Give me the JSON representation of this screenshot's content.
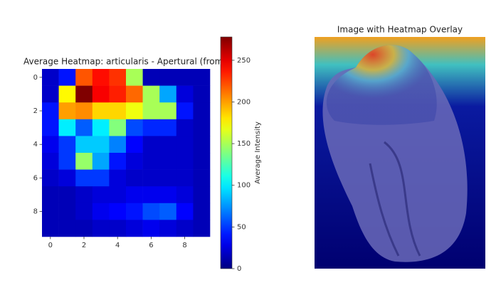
{
  "chart_data": [
    {
      "type": "heatmap",
      "title": "Average Heatmap: articularis - Apertural (from",
      "colormap": "jet",
      "values": [
        [
          20,
          40,
          220,
          240,
          230,
          150,
          15,
          15,
          15,
          15
        ],
        [
          20,
          175,
          278,
          245,
          235,
          215,
          150,
          80,
          25,
          15
        ],
        [
          40,
          200,
          205,
          185,
          185,
          170,
          150,
          150,
          40,
          15
        ],
        [
          40,
          100,
          60,
          100,
          140,
          55,
          45,
          45,
          20,
          15
        ],
        [
          30,
          50,
          90,
          90,
          70,
          35,
          20,
          20,
          20,
          15
        ],
        [
          25,
          50,
          145,
          80,
          40,
          25,
          20,
          20,
          20,
          15
        ],
        [
          20,
          25,
          50,
          50,
          25,
          20,
          20,
          20,
          20,
          15
        ],
        [
          15,
          15,
          20,
          25,
          25,
          30,
          30,
          30,
          25,
          15
        ],
        [
          15,
          15,
          20,
          30,
          35,
          40,
          55,
          60,
          35,
          15
        ],
        [
          15,
          15,
          15,
          20,
          20,
          25,
          30,
          25,
          20,
          15
        ]
      ],
      "xlim": [
        -0.5,
        9.5
      ],
      "ylim": [
        -0.5,
        9.5
      ],
      "xticks": [
        0,
        2,
        4,
        6,
        8
      ],
      "yticks": [
        0,
        2,
        4,
        6,
        8
      ],
      "colorbar_label": "Average Intensity",
      "clim": [
        0,
        278
      ],
      "colorbar_ticks": [
        0,
        50,
        100,
        150,
        200,
        250
      ]
    },
    {
      "type": "image",
      "title": "Image with Heatmap Overlay"
    }
  ]
}
